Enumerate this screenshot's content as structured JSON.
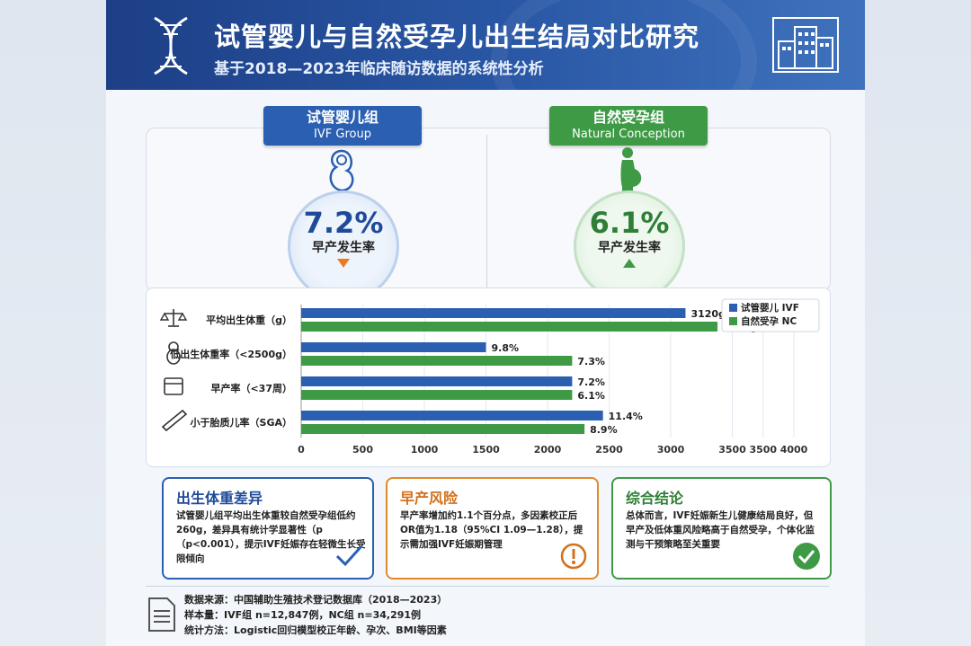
{
  "header": {
    "title": "试管婴儿与自然受孕儿出生结局对比研究",
    "subtitle": "基于2018—2023年临床随访数据的系统性分析"
  },
  "groups": {
    "ivf": {
      "zh": "试管婴儿组",
      "en": "IVF Group",
      "pct": "7.2%",
      "label": "早产发生率"
    },
    "nc": {
      "zh": "自然受孕组",
      "en": "Natural Conception",
      "pct": "6.1%",
      "label": "早产发生率"
    }
  },
  "colors": {
    "ivf": "#2b5fb1",
    "nc": "#3f9a46",
    "orange": "#e08a2c"
  },
  "chart_data": {
    "type": "bar",
    "orientation": "horizontal",
    "categories": [
      "平均出生体重（g）",
      "低出生体重率（<2500g）",
      "早产率（<37周）",
      "小于胎质儿率（SGA）"
    ],
    "category_icons": [
      "scale-icon",
      "baby-icon",
      "calendar-icon",
      "ruler-icon"
    ],
    "series": [
      {
        "name": "试管婴儿 IVF",
        "values": [
          3120,
          9.8,
          7.2,
          11.4
        ],
        "labels": [
          "3120g",
          "9.8%",
          "7.2%",
          "11.4%"
        ],
        "display_values": [
          3120,
          1500,
          2200,
          2450
        ],
        "color": "#2b5fb1"
      },
      {
        "name": "自然受孕 NC",
        "values": [
          3380,
          7.3,
          6.1,
          8.9
        ],
        "labels": [
          "3380g",
          "7.3%",
          "6.1%",
          "8.9%"
        ],
        "display_values": [
          3380,
          2200,
          2200,
          2300
        ],
        "color": "#3f9a46"
      }
    ],
    "xticks": [
      "0",
      "500",
      "1000",
      "1500",
      "2000",
      "2500",
      "3000",
      "3500",
      "3500",
      "4000"
    ],
    "xlim": [
      0,
      4000
    ],
    "grid": true,
    "legend_position": "top-right"
  },
  "cards": [
    {
      "title": "出生体重差异",
      "body": "试管婴儿组平均出生体重较自然受孕组低约260g，差异具有统计学显著性（p（p<0.001），提示IVF妊娠存在轻微生长受限倾向",
      "icon": "checkmark-icon"
    },
    {
      "title": "早产风险",
      "body": "早产率增加约1.1个百分点，多因素校正后OR值为1.18（95%CI 1.09—1.28），提示需加强IVF妊娠期管理",
      "icon": "warning-icon"
    },
    {
      "title": "综合结论",
      "body": "总体而言，IVF妊娠新生儿健康结局良好，但早产及低体重风险略高于自然受孕，个体化监测与干预策略至关重要",
      "icon": "check-circle-icon"
    }
  ],
  "footer": {
    "source": "数据来源：中国辅助生殖技术登记数据库（2018—2023）",
    "sample": "样本量：IVF组 n=12,847例，NC组 n=34,291例",
    "method": "统计方法：Logistic回归模型校正年龄、孕次、BMI等因素"
  }
}
